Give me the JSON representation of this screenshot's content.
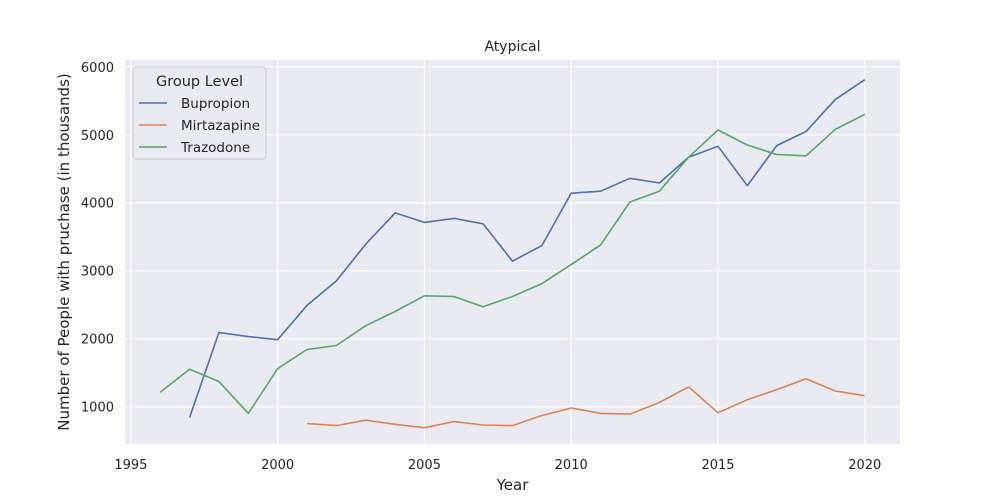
{
  "chart_data": {
    "type": "line",
    "title": "Atypical",
    "xlabel": "Year",
    "ylabel": "Number of People with pruchase (in thousands)",
    "xlim": [
      1994.8,
      2021.2
    ],
    "ylim": [
      450,
      6100
    ],
    "xticks": [
      1995,
      2000,
      2005,
      2010,
      2015,
      2020
    ],
    "yticks": [
      1000,
      2000,
      3000,
      4000,
      5000,
      6000
    ],
    "xtick_labels": [
      "1995",
      "2000",
      "2005",
      "2010",
      "2015",
      "2020"
    ],
    "ytick_labels": [
      "1000",
      "2000",
      "3000",
      "4000",
      "5000",
      "6000"
    ],
    "grid": true,
    "legend": {
      "title": "Group Level",
      "placement": "upper-left"
    },
    "series": [
      {
        "name": "Bupropion",
        "color": "#4c72b0",
        "x": [
          1997,
          1998,
          1999,
          2000,
          2001,
          2002,
          2003,
          2004,
          2005,
          2006,
          2007,
          2008,
          2009,
          2010,
          2011,
          2012,
          2013,
          2014,
          2015,
          2016,
          2017,
          2018,
          2019,
          2020
        ],
        "y": [
          840,
          2090,
          2030,
          1985,
          2490,
          2850,
          3390,
          3850,
          3710,
          3770,
          3690,
          3140,
          3370,
          4140,
          4170,
          4360,
          4290,
          4670,
          4830,
          4250,
          4840,
          5050,
          5520,
          5810
        ]
      },
      {
        "name": "Mirtazapine",
        "color": "#dd8452",
        "x": [
          2001,
          2002,
          2003,
          2004,
          2005,
          2006,
          2007,
          2008,
          2009,
          2010,
          2011,
          2012,
          2013,
          2014,
          2015,
          2016,
          2017,
          2018,
          2019,
          2020
        ],
        "y": [
          750,
          720,
          800,
          740,
          690,
          780,
          730,
          720,
          870,
          980,
          900,
          890,
          1060,
          1290,
          910,
          1100,
          1250,
          1410,
          1230,
          1160
        ]
      },
      {
        "name": "Trazodone",
        "color": "#55a868",
        "x": [
          1996,
          1997,
          1998,
          1999,
          2000,
          2001,
          2002,
          2003,
          2004,
          2005,
          2006,
          2007,
          2008,
          2009,
          2010,
          2011,
          2012,
          2013,
          2014,
          2015,
          2016,
          2017,
          2018,
          2019,
          2020
        ],
        "y": [
          1210,
          1550,
          1370,
          900,
          1560,
          1840,
          1900,
          2190,
          2400,
          2630,
          2620,
          2470,
          2620,
          2810,
          3090,
          3380,
          4010,
          4170,
          4670,
          5070,
          4850,
          4710,
          4690,
          5080,
          5300
        ]
      }
    ]
  }
}
